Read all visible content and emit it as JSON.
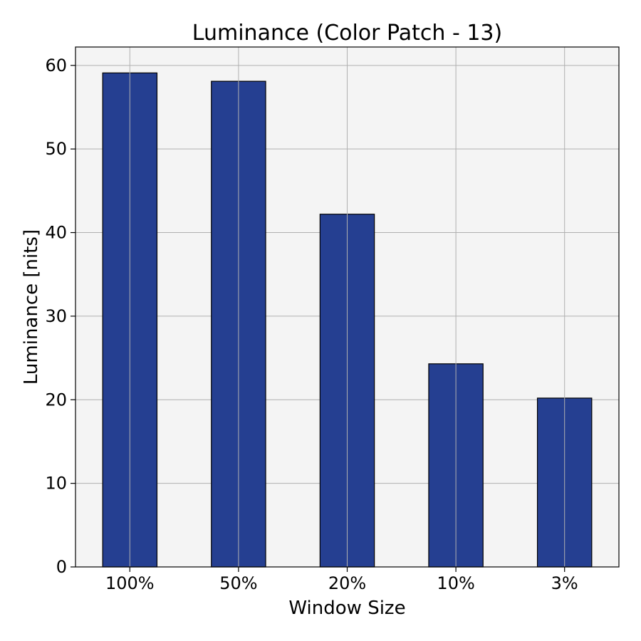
{
  "chart_data": {
    "type": "bar",
    "title": "Luminance (Color Patch - 13)",
    "xlabel": "Window Size",
    "ylabel": "Luminance [nits]",
    "categories": [
      "100%",
      "50%",
      "20%",
      "10%",
      "3%"
    ],
    "values": [
      59.1,
      58.1,
      42.2,
      24.3,
      20.2
    ],
    "ylim": [
      0,
      62.2
    ],
    "yticks": [
      0,
      10,
      20,
      30,
      40,
      50,
      60
    ],
    "grid": true,
    "legend": "none",
    "colors": {
      "bar_fill": "#253f91",
      "bar_edge": "#000000",
      "plot_background": "#f4f4f4",
      "grid": "#b0b0b0",
      "axes_frame": "#000000"
    }
  }
}
